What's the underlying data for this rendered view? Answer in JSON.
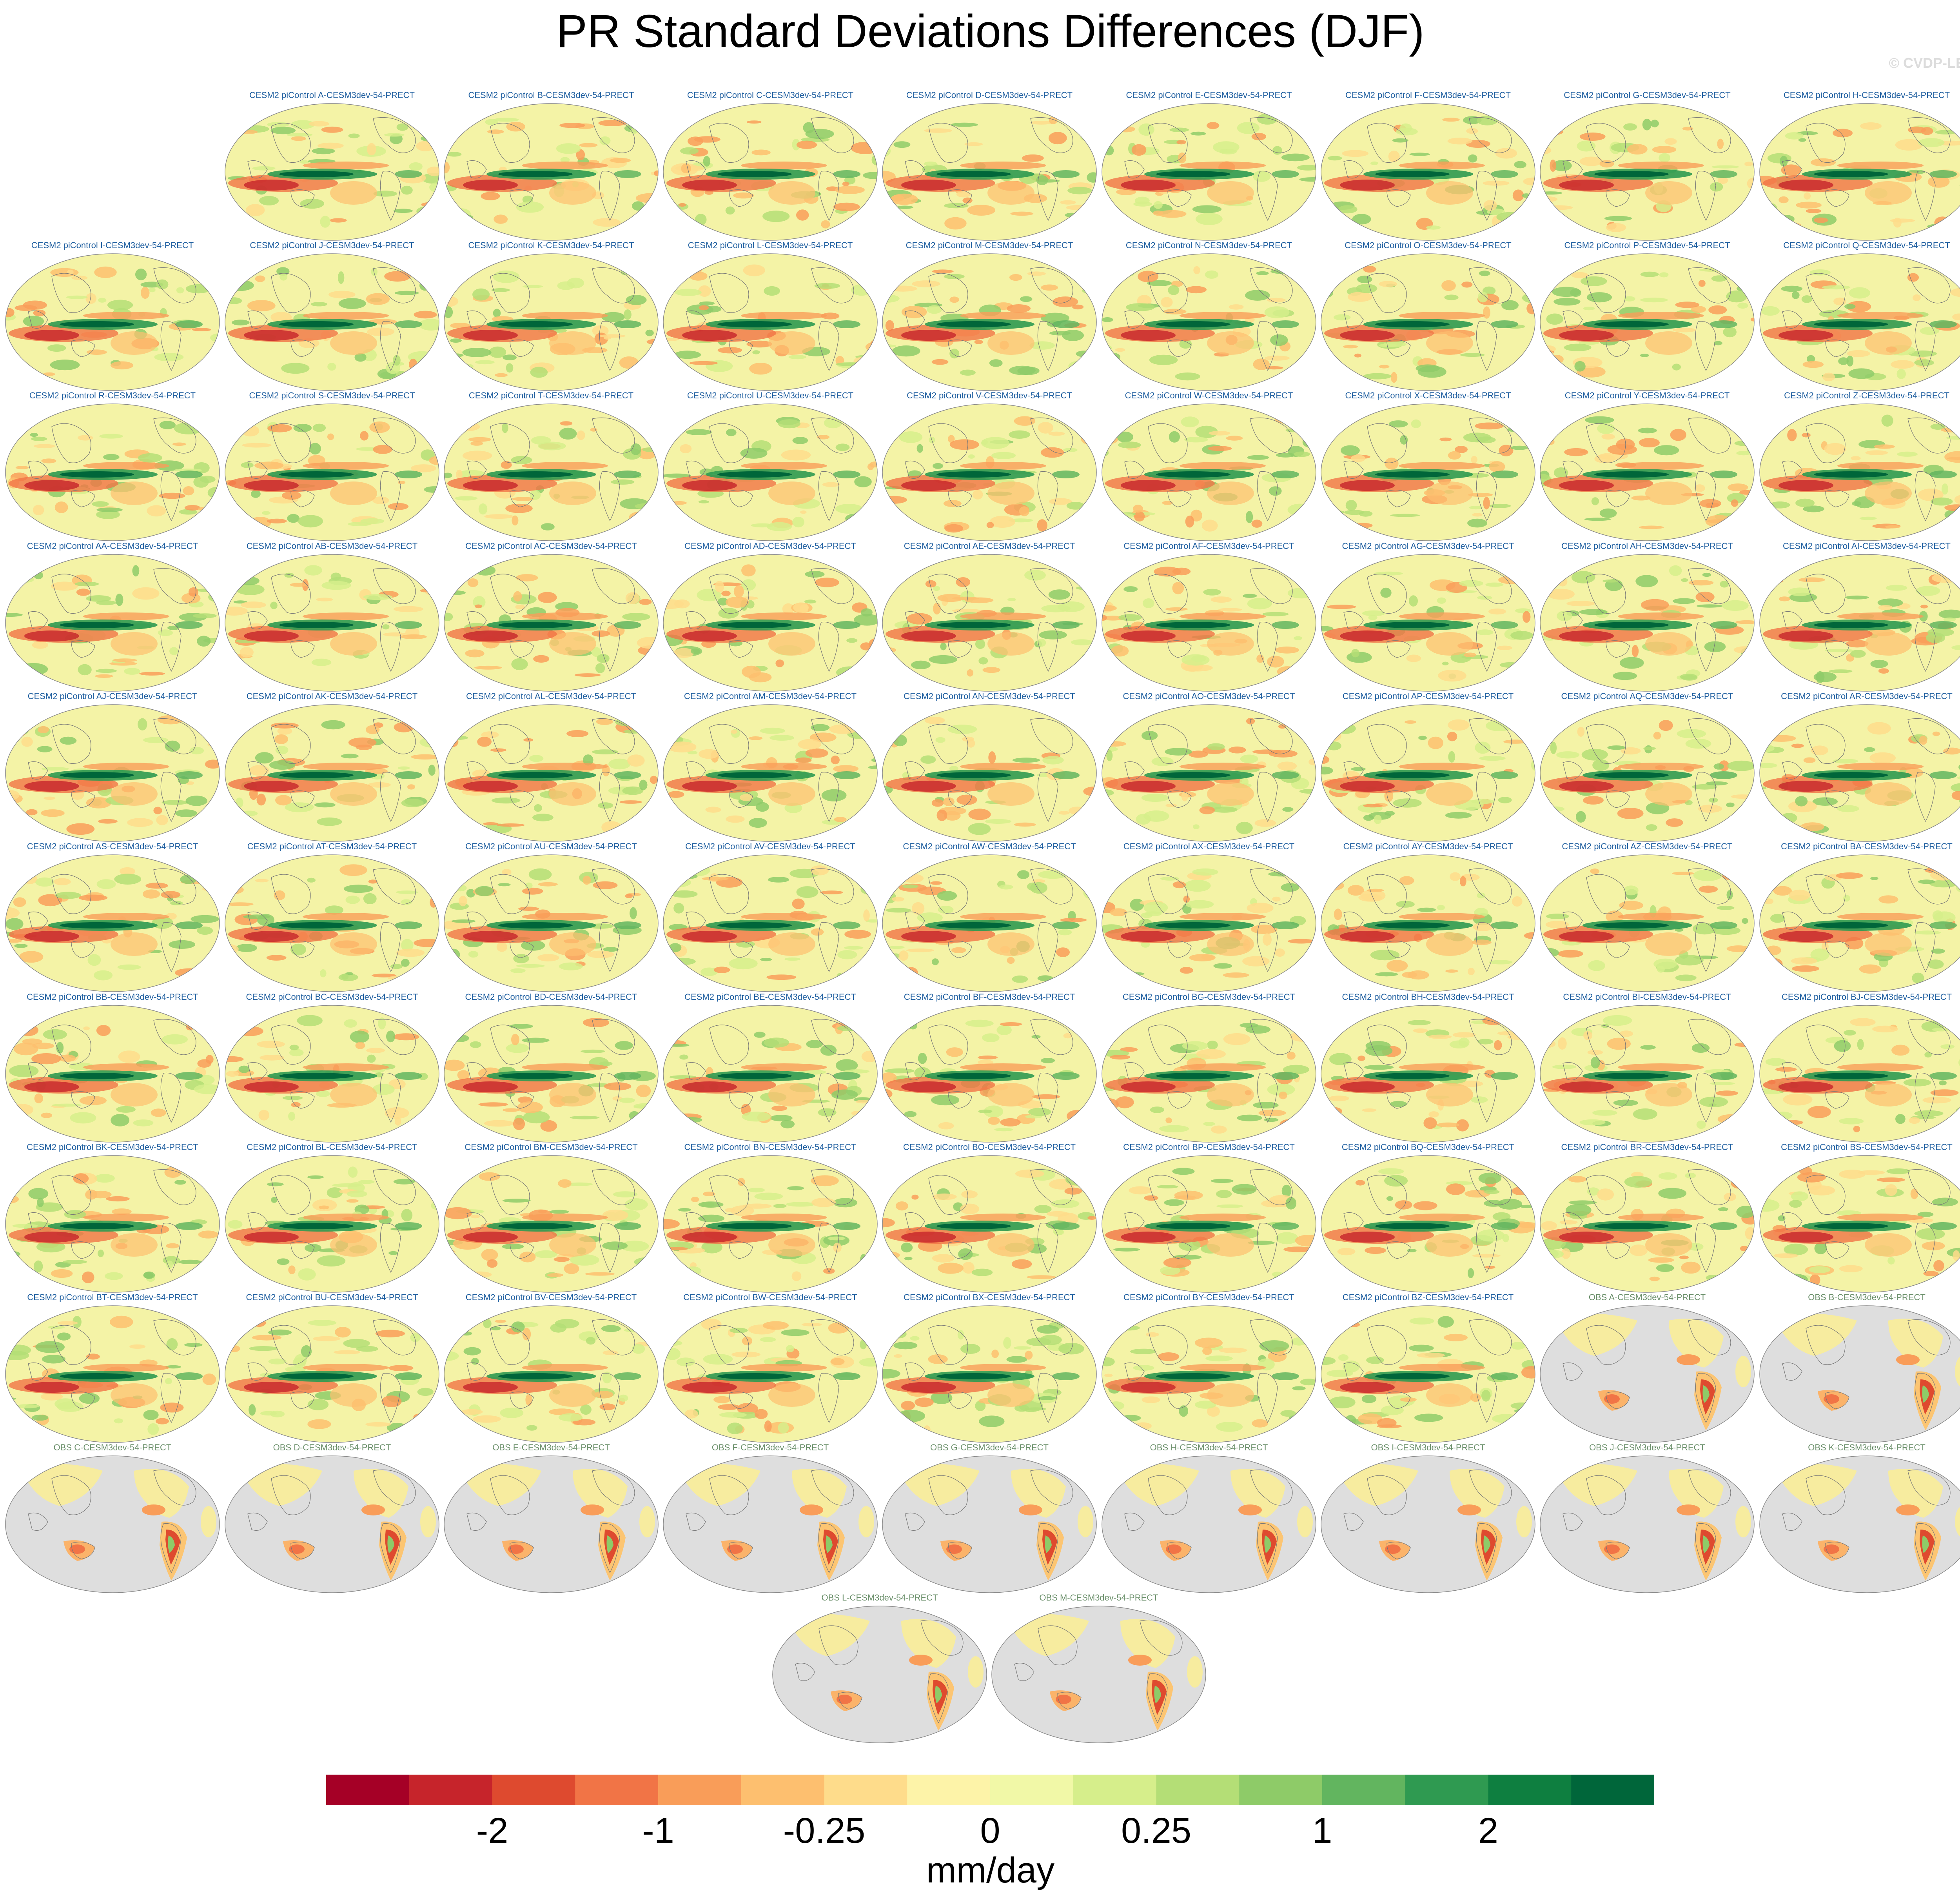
{
  "title": "PR Standard Deviations Differences (DJF)",
  "credit": "© CVDP-LE",
  "panel_title_colors": {
    "model": "#1f5fa0",
    "obs": "#6a8f6a"
  },
  "panels": [
    {
      "title": "CESM2 piControl A-CESM3dev-54-PRECT",
      "kind": "model"
    },
    {
      "title": "CESM2 piControl B-CESM3dev-54-PRECT",
      "kind": "model"
    },
    {
      "title": "CESM2 piControl C-CESM3dev-54-PRECT",
      "kind": "model"
    },
    {
      "title": "CESM2 piControl D-CESM3dev-54-PRECT",
      "kind": "model"
    },
    {
      "title": "CESM2 piControl E-CESM3dev-54-PRECT",
      "kind": "model"
    },
    {
      "title": "CESM2 piControl F-CESM3dev-54-PRECT",
      "kind": "model"
    },
    {
      "title": "CESM2 piControl G-CESM3dev-54-PRECT",
      "kind": "model"
    },
    {
      "title": "CESM2 piControl H-CESM3dev-54-PRECT",
      "kind": "model"
    },
    {
      "title": "CESM2 piControl I-CESM3dev-54-PRECT",
      "kind": "model"
    },
    {
      "title": "CESM2 piControl J-CESM3dev-54-PRECT",
      "kind": "model"
    },
    {
      "title": "CESM2 piControl K-CESM3dev-54-PRECT",
      "kind": "model"
    },
    {
      "title": "CESM2 piControl L-CESM3dev-54-PRECT",
      "kind": "model"
    },
    {
      "title": "CESM2 piControl M-CESM3dev-54-PRECT",
      "kind": "model"
    },
    {
      "title": "CESM2 piControl N-CESM3dev-54-PRECT",
      "kind": "model"
    },
    {
      "title": "CESM2 piControl O-CESM3dev-54-PRECT",
      "kind": "model"
    },
    {
      "title": "CESM2 piControl P-CESM3dev-54-PRECT",
      "kind": "model"
    },
    {
      "title": "CESM2 piControl Q-CESM3dev-54-PRECT",
      "kind": "model"
    },
    {
      "title": "CESM2 piControl R-CESM3dev-54-PRECT",
      "kind": "model"
    },
    {
      "title": "CESM2 piControl S-CESM3dev-54-PRECT",
      "kind": "model"
    },
    {
      "title": "CESM2 piControl T-CESM3dev-54-PRECT",
      "kind": "model"
    },
    {
      "title": "CESM2 piControl U-CESM3dev-54-PRECT",
      "kind": "model"
    },
    {
      "title": "CESM2 piControl V-CESM3dev-54-PRECT",
      "kind": "model"
    },
    {
      "title": "CESM2 piControl W-CESM3dev-54-PRECT",
      "kind": "model"
    },
    {
      "title": "CESM2 piControl X-CESM3dev-54-PRECT",
      "kind": "model"
    },
    {
      "title": "CESM2 piControl Y-CESM3dev-54-PRECT",
      "kind": "model"
    },
    {
      "title": "CESM2 piControl Z-CESM3dev-54-PRECT",
      "kind": "model"
    },
    {
      "title": "CESM2 piControl AA-CESM3dev-54-PRECT",
      "kind": "model"
    },
    {
      "title": "CESM2 piControl AB-CESM3dev-54-PRECT",
      "kind": "model"
    },
    {
      "title": "CESM2 piControl AC-CESM3dev-54-PRECT",
      "kind": "model"
    },
    {
      "title": "CESM2 piControl AD-CESM3dev-54-PRECT",
      "kind": "model"
    },
    {
      "title": "CESM2 piControl AE-CESM3dev-54-PRECT",
      "kind": "model"
    },
    {
      "title": "CESM2 piControl AF-CESM3dev-54-PRECT",
      "kind": "model"
    },
    {
      "title": "CESM2 piControl AG-CESM3dev-54-PRECT",
      "kind": "model"
    },
    {
      "title": "CESM2 piControl AH-CESM3dev-54-PRECT",
      "kind": "model"
    },
    {
      "title": "CESM2 piControl AI-CESM3dev-54-PRECT",
      "kind": "model"
    },
    {
      "title": "CESM2 piControl AJ-CESM3dev-54-PRECT",
      "kind": "model"
    },
    {
      "title": "CESM2 piControl AK-CESM3dev-54-PRECT",
      "kind": "model"
    },
    {
      "title": "CESM2 piControl AL-CESM3dev-54-PRECT",
      "kind": "model"
    },
    {
      "title": "CESM2 piControl AM-CESM3dev-54-PRECT",
      "kind": "model"
    },
    {
      "title": "CESM2 piControl AN-CESM3dev-54-PRECT",
      "kind": "model"
    },
    {
      "title": "CESM2 piControl AO-CESM3dev-54-PRECT",
      "kind": "model"
    },
    {
      "title": "CESM2 piControl AP-CESM3dev-54-PRECT",
      "kind": "model"
    },
    {
      "title": "CESM2 piControl AQ-CESM3dev-54-PRECT",
      "kind": "model"
    },
    {
      "title": "CESM2 piControl AR-CESM3dev-54-PRECT",
      "kind": "model"
    },
    {
      "title": "CESM2 piControl AS-CESM3dev-54-PRECT",
      "kind": "model"
    },
    {
      "title": "CESM2 piControl AT-CESM3dev-54-PRECT",
      "kind": "model"
    },
    {
      "title": "CESM2 piControl AU-CESM3dev-54-PRECT",
      "kind": "model"
    },
    {
      "title": "CESM2 piControl AV-CESM3dev-54-PRECT",
      "kind": "model"
    },
    {
      "title": "CESM2 piControl AW-CESM3dev-54-PRECT",
      "kind": "model"
    },
    {
      "title": "CESM2 piControl AX-CESM3dev-54-PRECT",
      "kind": "model"
    },
    {
      "title": "CESM2 piControl AY-CESM3dev-54-PRECT",
      "kind": "model"
    },
    {
      "title": "CESM2 piControl AZ-CESM3dev-54-PRECT",
      "kind": "model"
    },
    {
      "title": "CESM2 piControl BA-CESM3dev-54-PRECT",
      "kind": "model"
    },
    {
      "title": "CESM2 piControl BB-CESM3dev-54-PRECT",
      "kind": "model"
    },
    {
      "title": "CESM2 piControl BC-CESM3dev-54-PRECT",
      "kind": "model"
    },
    {
      "title": "CESM2 piControl BD-CESM3dev-54-PRECT",
      "kind": "model"
    },
    {
      "title": "CESM2 piControl BE-CESM3dev-54-PRECT",
      "kind": "model"
    },
    {
      "title": "CESM2 piControl BF-CESM3dev-54-PRECT",
      "kind": "model"
    },
    {
      "title": "CESM2 piControl BG-CESM3dev-54-PRECT",
      "kind": "model"
    },
    {
      "title": "CESM2 piControl BH-CESM3dev-54-PRECT",
      "kind": "model"
    },
    {
      "title": "CESM2 piControl BI-CESM3dev-54-PRECT",
      "kind": "model"
    },
    {
      "title": "CESM2 piControl BJ-CESM3dev-54-PRECT",
      "kind": "model"
    },
    {
      "title": "CESM2 piControl BK-CESM3dev-54-PRECT",
      "kind": "model"
    },
    {
      "title": "CESM2 piControl BL-CESM3dev-54-PRECT",
      "kind": "model"
    },
    {
      "title": "CESM2 piControl BM-CESM3dev-54-PRECT",
      "kind": "model"
    },
    {
      "title": "CESM2 piControl BN-CESM3dev-54-PRECT",
      "kind": "model"
    },
    {
      "title": "CESM2 piControl BO-CESM3dev-54-PRECT",
      "kind": "model"
    },
    {
      "title": "CESM2 piControl BP-CESM3dev-54-PRECT",
      "kind": "model"
    },
    {
      "title": "CESM2 piControl BQ-CESM3dev-54-PRECT",
      "kind": "model"
    },
    {
      "title": "CESM2 piControl BR-CESM3dev-54-PRECT",
      "kind": "model"
    },
    {
      "title": "CESM2 piControl BS-CESM3dev-54-PRECT",
      "kind": "model"
    },
    {
      "title": "CESM2 piControl BT-CESM3dev-54-PRECT",
      "kind": "model"
    },
    {
      "title": "CESM2 piControl BU-CESM3dev-54-PRECT",
      "kind": "model"
    },
    {
      "title": "CESM2 piControl BV-CESM3dev-54-PRECT",
      "kind": "model"
    },
    {
      "title": "CESM2 piControl BW-CESM3dev-54-PRECT",
      "kind": "model"
    },
    {
      "title": "CESM2 piControl BX-CESM3dev-54-PRECT",
      "kind": "model"
    },
    {
      "title": "CESM2 piControl BY-CESM3dev-54-PRECT",
      "kind": "model"
    },
    {
      "title": "CESM2 piControl BZ-CESM3dev-54-PRECT",
      "kind": "model"
    },
    {
      "title": "OBS A-CESM3dev-54-PRECT",
      "kind": "obs"
    },
    {
      "title": "OBS B-CESM3dev-54-PRECT",
      "kind": "obs"
    },
    {
      "title": "OBS C-CESM3dev-54-PRECT",
      "kind": "obs"
    },
    {
      "title": "OBS D-CESM3dev-54-PRECT",
      "kind": "obs"
    },
    {
      "title": "OBS E-CESM3dev-54-PRECT",
      "kind": "obs"
    },
    {
      "title": "OBS F-CESM3dev-54-PRECT",
      "kind": "obs"
    },
    {
      "title": "OBS G-CESM3dev-54-PRECT",
      "kind": "obs"
    },
    {
      "title": "OBS H-CESM3dev-54-PRECT",
      "kind": "obs"
    },
    {
      "title": "OBS I-CESM3dev-54-PRECT",
      "kind": "obs"
    },
    {
      "title": "OBS J-CESM3dev-54-PRECT",
      "kind": "obs"
    },
    {
      "title": "OBS K-CESM3dev-54-PRECT",
      "kind": "obs"
    },
    {
      "title": "OBS L-CESM3dev-54-PRECT",
      "kind": "obs"
    },
    {
      "title": "OBS M-CESM3dev-54-PRECT",
      "kind": "obs"
    }
  ],
  "colorbar": {
    "colors": [
      "#a50026",
      "#c6242b",
      "#de4a2f",
      "#f17446",
      "#f99d59",
      "#fdbf6f",
      "#fedc8b",
      "#fdf3a8",
      "#f1f8a7",
      "#d6ee8b",
      "#b4de76",
      "#8ecb68",
      "#62b55f",
      "#2f9a51",
      "#0e7f40",
      "#00663a"
    ],
    "tick_labels": [
      "-2",
      "-1",
      "-0.25",
      "0",
      "0.25",
      "1",
      "2"
    ],
    "units": "mm/day"
  }
}
